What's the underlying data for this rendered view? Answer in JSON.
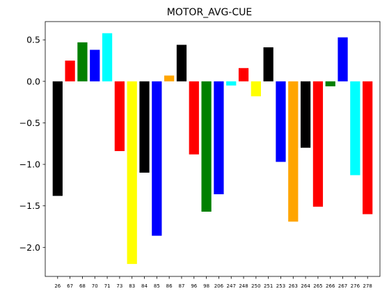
{
  "chart_data": {
    "type": "bar",
    "title": "MOTOR_AVG-CUE",
    "xlabel": "",
    "ylabel": "",
    "ylim": [
      -2.35,
      0.72
    ],
    "yticks": [
      -2.0,
      -1.5,
      -1.0,
      -0.5,
      0.0,
      0.5
    ],
    "ytick_labels": [
      "−2.0",
      "−1.5",
      "−1.0",
      "−0.5",
      "0.0",
      "0.5"
    ],
    "grid": false,
    "categories": [
      "26",
      "67",
      "68",
      "70",
      "71",
      "73",
      "83",
      "84",
      "85",
      "86",
      "87",
      "96",
      "98",
      "206",
      "247",
      "248",
      "250",
      "251",
      "253",
      "263",
      "264",
      "265",
      "266",
      "267",
      "276",
      "278"
    ],
    "values": [
      -1.38,
      0.25,
      0.47,
      0.38,
      0.58,
      -0.84,
      -2.2,
      -1.1,
      -1.86,
      0.07,
      0.44,
      -0.88,
      -1.57,
      -1.36,
      -0.05,
      0.16,
      -0.18,
      0.41,
      -0.97,
      -1.69,
      -0.8,
      -1.51,
      -0.06,
      0.53,
      -1.13,
      -1.6
    ],
    "colors": [
      "#000000",
      "#ff0000",
      "#008000",
      "#0000ff",
      "#00ffff",
      "#ff0000",
      "#ffff00",
      "#000000",
      "#0000ff",
      "#ffa500",
      "#000000",
      "#ff0000",
      "#008000",
      "#0000ff",
      "#00ffff",
      "#ff0000",
      "#ffff00",
      "#000000",
      "#0000ff",
      "#ffa500",
      "#000000",
      "#ff0000",
      "#008000",
      "#0000ff",
      "#00ffff",
      "#ff0000"
    ]
  }
}
